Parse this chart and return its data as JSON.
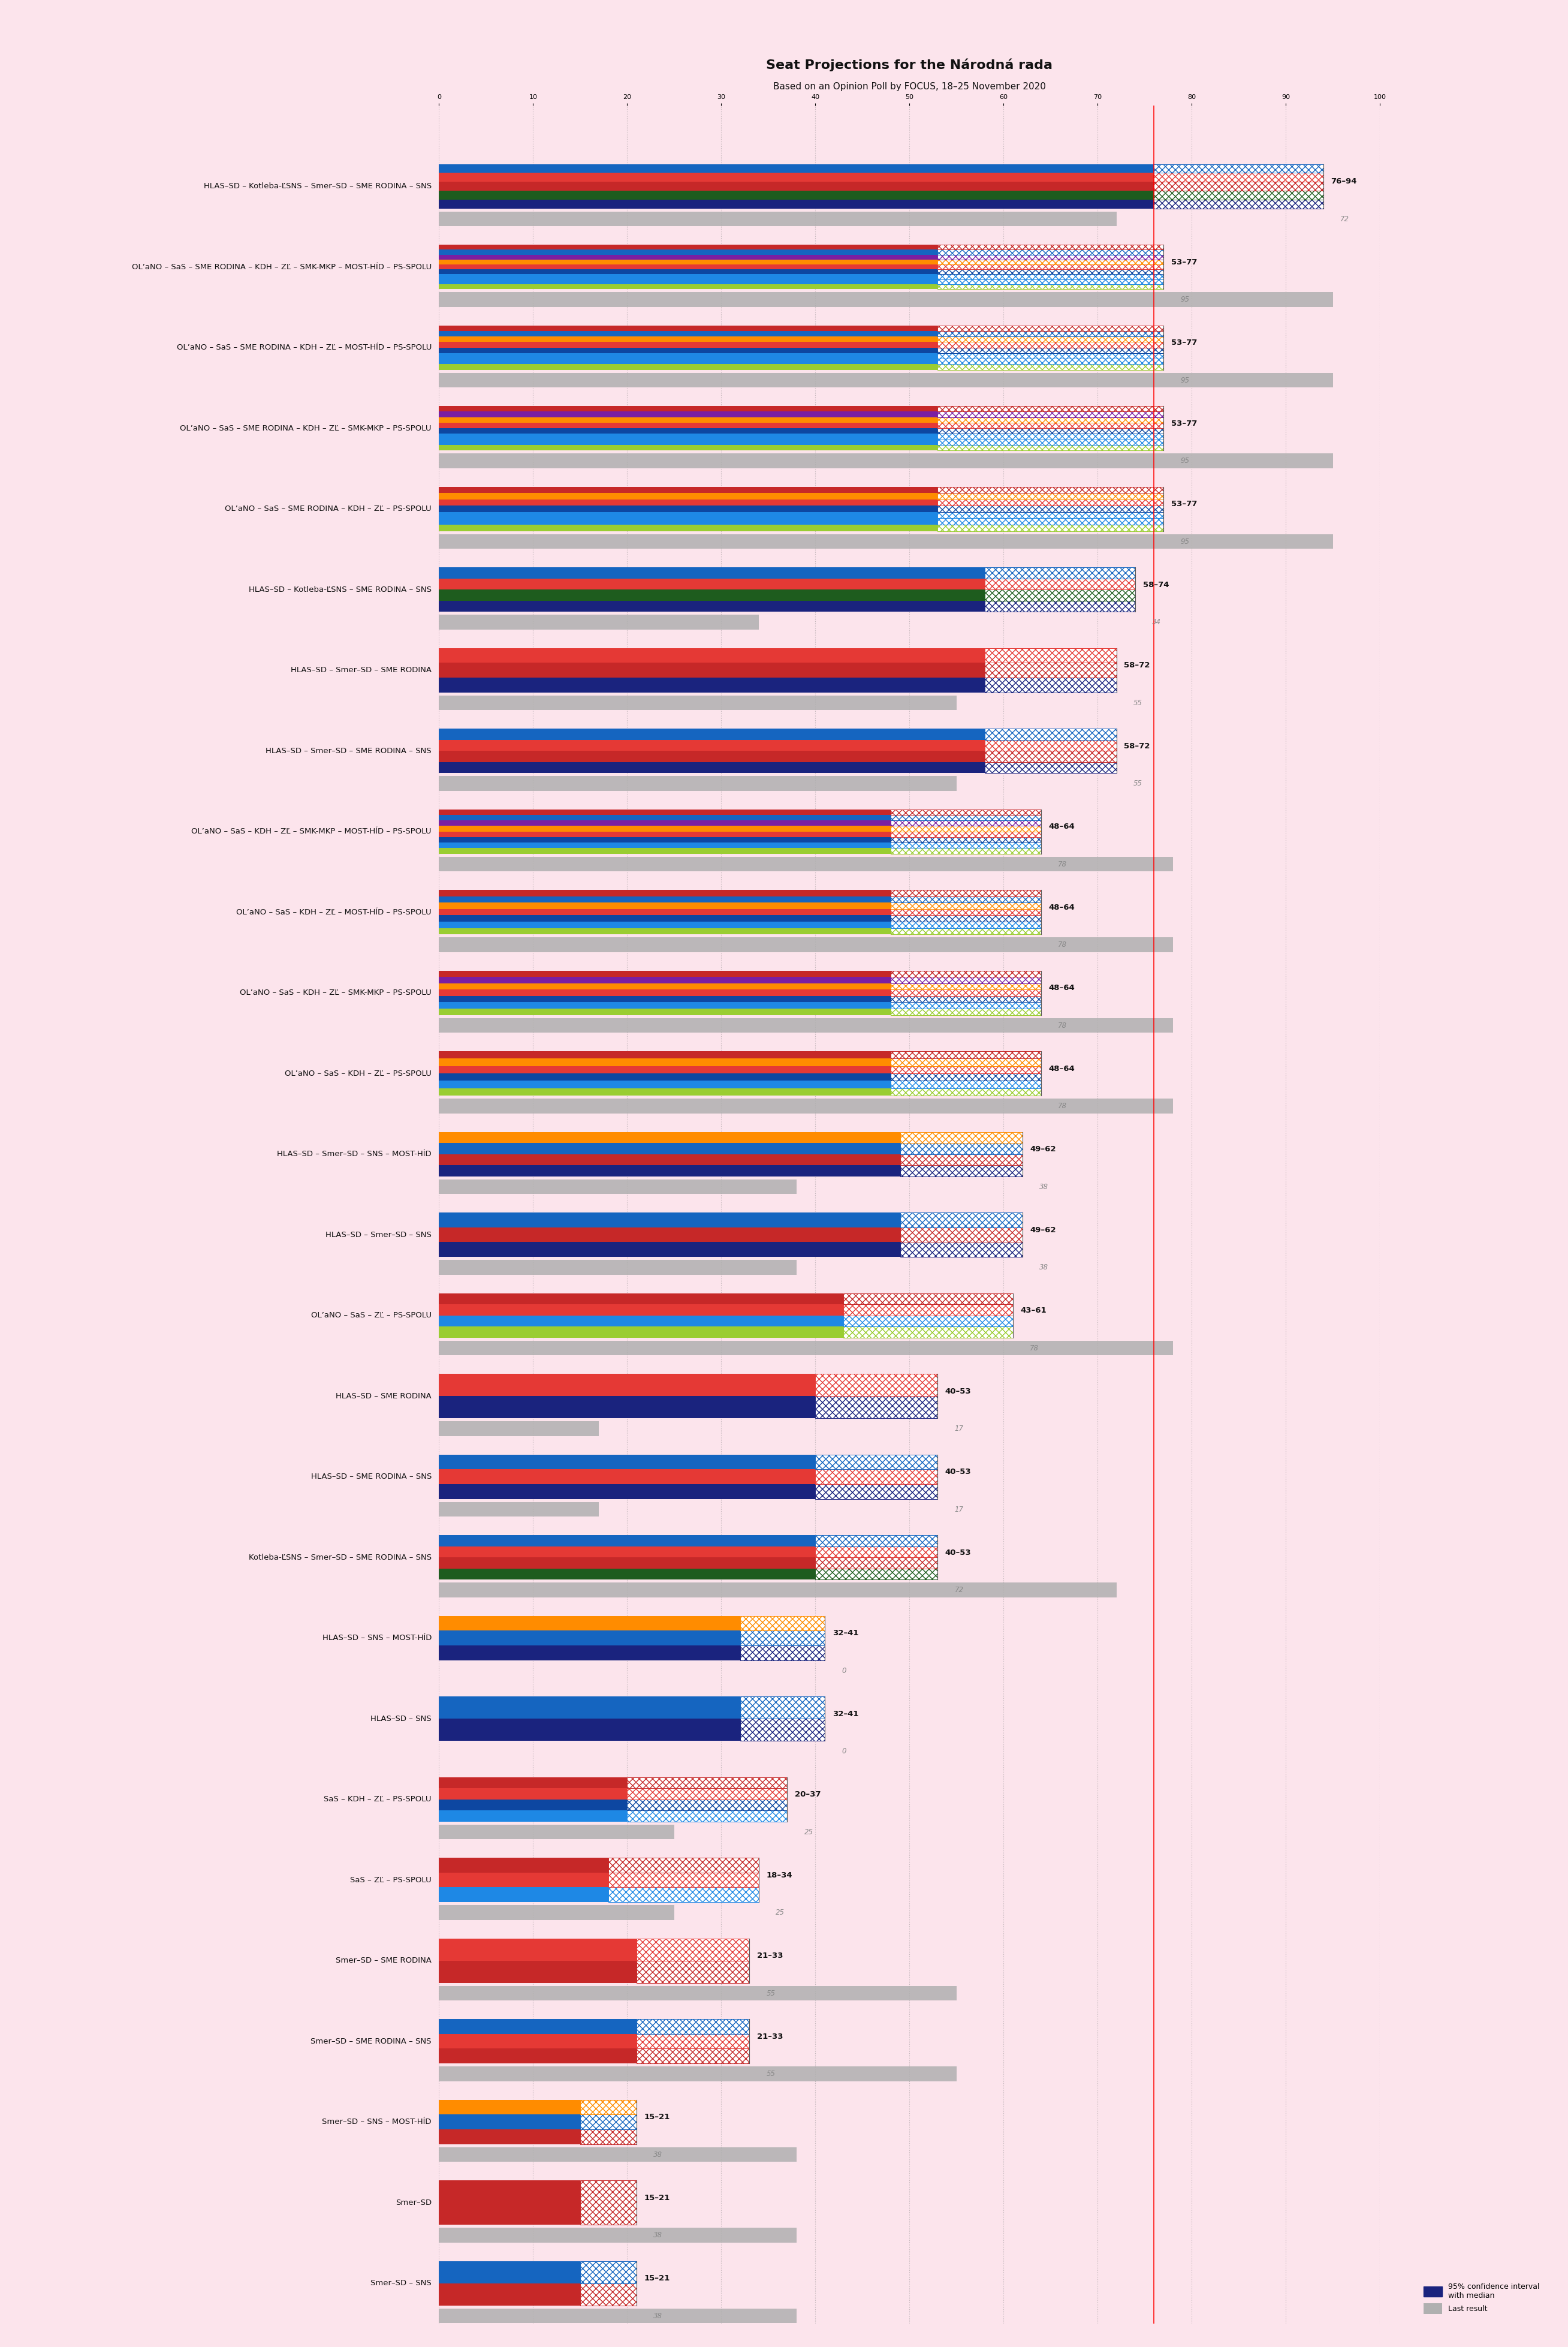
{
  "title": "Seat Projections for the Národná rada",
  "subtitle": "Based on an Opinion Poll by FOCUS, 18–25 November 2020",
  "background_color": "#fce4ec",
  "total_seats": 150,
  "majority_line": 76,
  "coalitions": [
    {
      "label": "HLAS–SD – Kotleba-ĽSNS – Smer–SD – SME RODINA – SNS",
      "low": 76,
      "high": 94,
      "last_result": 72,
      "colors": [
        "#1a237e",
        "#1e5c1e",
        "#c62828",
        "#e53935",
        "#1565c0"
      ]
    },
    {
      "label": "OL’aNO – SaS – SME RODINA – KDH – ZĽ – SMK-MKP – MOST-HÍD – PS-SPOLU",
      "low": 53,
      "high": 77,
      "last_result": 95,
      "colors": [
        "#9acd32",
        "#1e88e5",
        "#1e88e5",
        "#0d47a1",
        "#e53935",
        "#ff8c00",
        "#7b1fa2",
        "#1565c0",
        "#c62828"
      ]
    },
    {
      "label": "OL’aNO – SaS – SME RODINA – KDH – ZĽ – MOST-HÍD – PS-SPOLU",
      "low": 53,
      "high": 77,
      "last_result": 95,
      "colors": [
        "#9acd32",
        "#1e88e5",
        "#1e88e5",
        "#0d47a1",
        "#e53935",
        "#ff8c00",
        "#1565c0",
        "#c62828"
      ]
    },
    {
      "label": "OL’aNO – SaS – SME RODINA – KDH – ZĽ – SMK-MKP – PS-SPOLU",
      "low": 53,
      "high": 77,
      "last_result": 95,
      "colors": [
        "#9acd32",
        "#1e88e5",
        "#1e88e5",
        "#0d47a1",
        "#e53935",
        "#ff8c00",
        "#7b1fa2",
        "#c62828"
      ]
    },
    {
      "label": "OL’aNO – SaS – SME RODINA – KDH – ZĽ – PS-SPOLU",
      "low": 53,
      "high": 77,
      "last_result": 95,
      "colors": [
        "#9acd32",
        "#1e88e5",
        "#1e88e5",
        "#0d47a1",
        "#e53935",
        "#ff8c00",
        "#c62828"
      ]
    },
    {
      "label": "HLAS–SD – Kotleba-ĽSNS – SME RODINA – SNS",
      "low": 58,
      "high": 74,
      "last_result": 34,
      "colors": [
        "#1a237e",
        "#1e5c1e",
        "#e53935",
        "#1565c0"
      ]
    },
    {
      "label": "HLAS–SD – Smer–SD – SME RODINA",
      "low": 58,
      "high": 72,
      "last_result": 55,
      "colors": [
        "#1a237e",
        "#c62828",
        "#e53935"
      ]
    },
    {
      "label": "HLAS–SD – Smer–SD – SME RODINA – SNS",
      "low": 58,
      "high": 72,
      "last_result": 55,
      "colors": [
        "#1a237e",
        "#c62828",
        "#e53935",
        "#1565c0"
      ]
    },
    {
      "label": "OL’aNO – SaS – KDH – ZĽ – SMK-MKP – MOST-HÍD – PS-SPOLU",
      "low": 48,
      "high": 64,
      "last_result": 78,
      "colors": [
        "#9acd32",
        "#1e88e5",
        "#0d47a1",
        "#e53935",
        "#ff8c00",
        "#7b1fa2",
        "#1565c0",
        "#c62828"
      ]
    },
    {
      "label": "OL’aNO – SaS – KDH – ZĽ – MOST-HÍD – PS-SPOLU",
      "low": 48,
      "high": 64,
      "last_result": 78,
      "colors": [
        "#9acd32",
        "#1e88e5",
        "#0d47a1",
        "#e53935",
        "#ff8c00",
        "#1565c0",
        "#c62828"
      ]
    },
    {
      "label": "OL’aNO – SaS – KDH – ZĽ – SMK-MKP – PS-SPOLU",
      "low": 48,
      "high": 64,
      "last_result": 78,
      "colors": [
        "#9acd32",
        "#1e88e5",
        "#0d47a1",
        "#e53935",
        "#ff8c00",
        "#7b1fa2",
        "#c62828"
      ]
    },
    {
      "label": "OL’aNO – SaS – KDH – ZĽ – PS-SPOLU",
      "low": 48,
      "high": 64,
      "last_result": 78,
      "colors": [
        "#9acd32",
        "#1e88e5",
        "#0d47a1",
        "#e53935",
        "#ff8c00",
        "#c62828"
      ]
    },
    {
      "label": "HLAS–SD – Smer–SD – SNS – MOST-HÍD",
      "low": 49,
      "high": 62,
      "last_result": 38,
      "colors": [
        "#1a237e",
        "#c62828",
        "#1565c0",
        "#ff8c00"
      ]
    },
    {
      "label": "HLAS–SD – Smer–SD – SNS",
      "low": 49,
      "high": 62,
      "last_result": 38,
      "colors": [
        "#1a237e",
        "#c62828",
        "#1565c0"
      ]
    },
    {
      "label": "OL’aNO – SaS – ZĽ – PS-SPOLU",
      "low": 43,
      "high": 61,
      "last_result": 78,
      "colors": [
        "#9acd32",
        "#1e88e5",
        "#e53935",
        "#c62828"
      ]
    },
    {
      "label": "HLAS–SD – SME RODINA",
      "low": 40,
      "high": 53,
      "last_result": 17,
      "colors": [
        "#1a237e",
        "#e53935"
      ]
    },
    {
      "label": "HLAS–SD – SME RODINA – SNS",
      "low": 40,
      "high": 53,
      "last_result": 17,
      "colors": [
        "#1a237e",
        "#e53935",
        "#1565c0"
      ]
    },
    {
      "label": "Kotleba-ĽSNS – Smer–SD – SME RODINA – SNS",
      "low": 40,
      "high": 53,
      "last_result": 72,
      "colors": [
        "#1e5c1e",
        "#c62828",
        "#e53935",
        "#1565c0"
      ]
    },
    {
      "label": "HLAS–SD – SNS – MOST-HÍD",
      "low": 32,
      "high": 41,
      "last_result": 0,
      "colors": [
        "#1a237e",
        "#1565c0",
        "#ff8c00"
      ]
    },
    {
      "label": "HLAS–SD – SNS",
      "low": 32,
      "high": 41,
      "last_result": 0,
      "colors": [
        "#1a237e",
        "#1565c0"
      ]
    },
    {
      "label": "SaS – KDH – ZĽ – PS-SPOLU",
      "low": 20,
      "high": 37,
      "last_result": 25,
      "colors": [
        "#1e88e5",
        "#0d47a1",
        "#e53935",
        "#c62828"
      ]
    },
    {
      "label": "SaS – ZĽ – PS-SPOLU",
      "low": 18,
      "high": 34,
      "last_result": 25,
      "colors": [
        "#1e88e5",
        "#e53935",
        "#c62828"
      ]
    },
    {
      "label": "Smer–SD – SME RODINA",
      "low": 21,
      "high": 33,
      "last_result": 55,
      "colors": [
        "#c62828",
        "#e53935"
      ]
    },
    {
      "label": "Smer–SD – SME RODINA – SNS",
      "low": 21,
      "high": 33,
      "last_result": 55,
      "colors": [
        "#c62828",
        "#e53935",
        "#1565c0"
      ]
    },
    {
      "label": "Smer–SD – SNS – MOST-HÍD",
      "low": 15,
      "high": 21,
      "last_result": 38,
      "colors": [
        "#c62828",
        "#1565c0",
        "#ff8c00"
      ]
    },
    {
      "label": "Smer–SD",
      "low": 15,
      "high": 21,
      "last_result": 38,
      "colors": [
        "#c62828"
      ]
    },
    {
      "label": "Smer–SD – SNS",
      "low": 15,
      "high": 21,
      "last_result": 38,
      "colors": [
        "#c62828",
        "#1565c0"
      ]
    }
  ]
}
